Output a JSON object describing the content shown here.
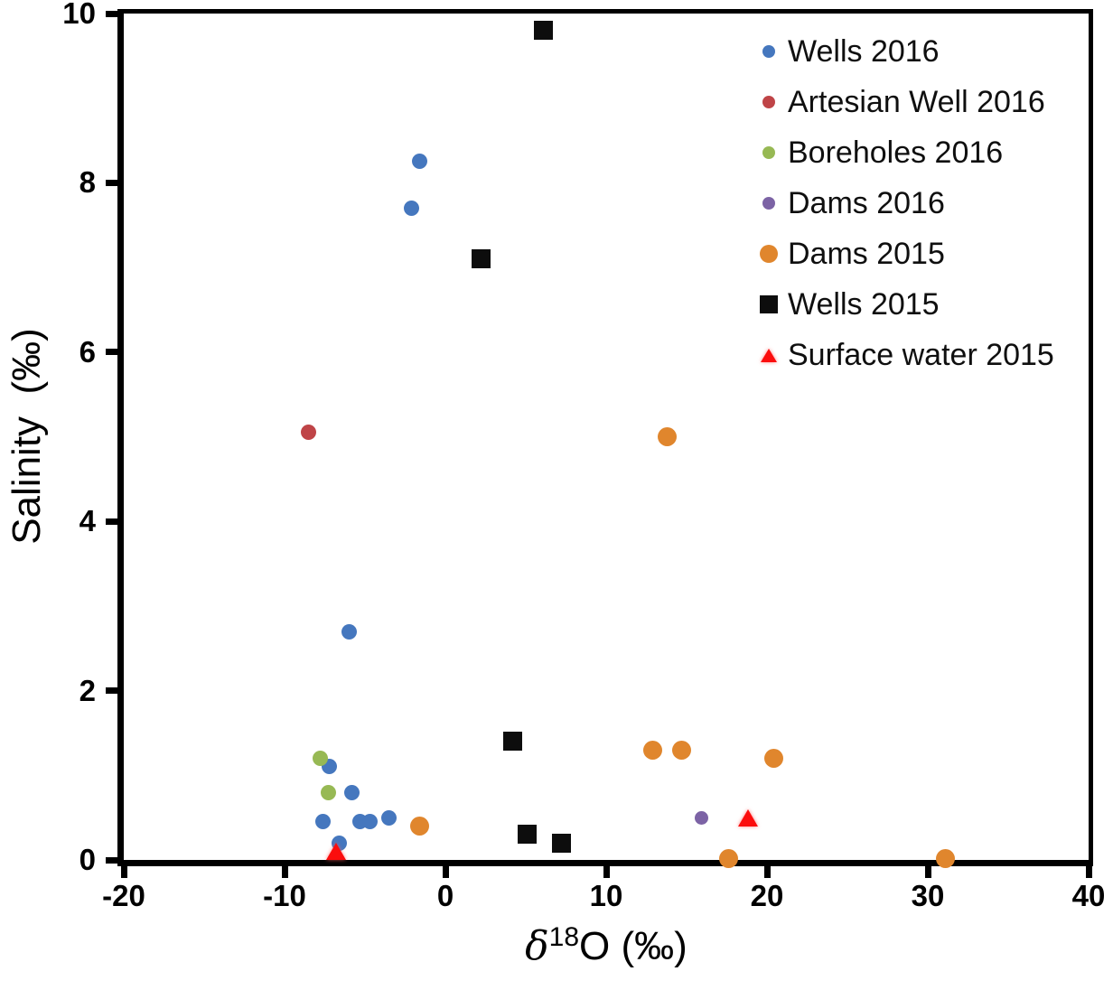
{
  "chart_data": {
    "type": "scatter",
    "title": "",
    "xlabel": {
      "delta": "δ",
      "sup": "18",
      "rest": "O",
      "units": " (‰)"
    },
    "ylabel": "Salinity  (‰)",
    "xlim": [
      -20,
      40
    ],
    "ylim": [
      0,
      10
    ],
    "xticks": [
      -20,
      -10,
      0,
      10,
      20,
      30,
      40
    ],
    "yticks": [
      0,
      2,
      4,
      6,
      8,
      10
    ],
    "grid": false,
    "legend_position": "top-right",
    "axis_color": "#000000",
    "background": "#ffffff",
    "series": [
      {
        "name": "Wells 2016",
        "marker": "circle",
        "color": "#4577be",
        "size": 17,
        "legend_size": 14,
        "points": [
          [
            -1.6,
            8.25
          ],
          [
            -2.1,
            7.7
          ],
          [
            -6.0,
            2.7
          ],
          [
            -7.2,
            1.1
          ],
          [
            -5.8,
            0.8
          ],
          [
            -7.6,
            0.45
          ],
          [
            -5.3,
            0.45
          ],
          [
            -4.7,
            0.45
          ],
          [
            -3.5,
            0.5
          ],
          [
            -6.6,
            0.2
          ]
        ]
      },
      {
        "name": "Artesian Well 2016",
        "marker": "circle",
        "color": "#bf4447",
        "size": 17,
        "legend_size": 14,
        "points": [
          [
            -8.5,
            5.05
          ]
        ]
      },
      {
        "name": "Boreholes 2016",
        "marker": "circle",
        "color": "#97b954",
        "size": 17,
        "legend_size": 14,
        "points": [
          [
            -7.8,
            1.2
          ],
          [
            -7.3,
            0.8
          ]
        ]
      },
      {
        "name": "Dams 2016",
        "marker": "circle",
        "color": "#7c63a5",
        "size": 15,
        "legend_size": 14,
        "points": [
          [
            15.9,
            0.5
          ]
        ]
      },
      {
        "name": "Dams 2015",
        "marker": "circle",
        "color": "#e0862d",
        "size": 21,
        "legend_size": 20,
        "points": [
          [
            13.8,
            5.0
          ],
          [
            12.9,
            1.3
          ],
          [
            14.7,
            1.3
          ],
          [
            20.4,
            1.2
          ],
          [
            -1.6,
            0.4
          ],
          [
            17.6,
            0.02
          ],
          [
            31.1,
            0.02
          ]
        ]
      },
      {
        "name": "Wells 2015",
        "marker": "square",
        "color": "#0d0d0d",
        "size": 21,
        "legend_size": 20,
        "points": [
          [
            6.1,
            9.8
          ],
          [
            2.2,
            7.1
          ],
          [
            4.2,
            1.4
          ],
          [
            5.1,
            0.3
          ],
          [
            7.2,
            0.2
          ]
        ]
      },
      {
        "name": "Surface water 2015",
        "marker": "triangle",
        "color": "#fb0d0d",
        "size": 22,
        "legend_size": 18,
        "points": [
          [
            -6.8,
            0.1
          ],
          [
            18.8,
            0.5
          ]
        ]
      }
    ]
  }
}
